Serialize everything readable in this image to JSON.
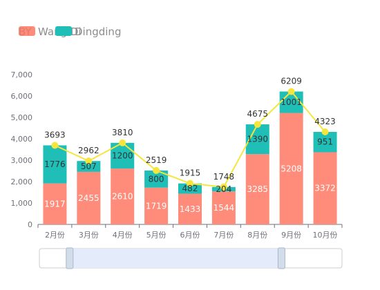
{
  "legend": {
    "series_a": "BY",
    "series_a_overlay": "Wang Di",
    "series_b": "Dingding"
  },
  "colors": {
    "series_a": "#ff8c7a",
    "series_b": "#1fbfb8",
    "line": "#f5e53c",
    "line_point": "#f5e53c",
    "grid": "#e6e6e6",
    "axis": "#6e7079",
    "zoom_fill": "#e4ecfb",
    "zoom_border": "#a7b7cc",
    "zoom_handle": "#d3dde9"
  },
  "chart_data": {
    "type": "bar",
    "stacked": true,
    "categories": [
      "2月份",
      "3月份",
      "4月份",
      "5月份",
      "6月份",
      "7月份",
      "8月份",
      "9月份",
      "10月份"
    ],
    "series": [
      {
        "name": "BY",
        "values": [
          1917,
          2455,
          2610,
          1719,
          1433,
          1544,
          3285,
          5208,
          3372
        ]
      },
      {
        "name": "Dingding",
        "values": [
          1776,
          507,
          1200,
          800,
          482,
          204,
          1390,
          1001,
          951
        ]
      }
    ],
    "line": {
      "values": [
        3693,
        2962,
        3810,
        2519,
        1915,
        1748,
        4675,
        6209,
        4323
      ]
    },
    "yticks": [
      "0",
      "1,000",
      "2,000",
      "3,000",
      "4,000",
      "5,000",
      "6,000",
      "7,000"
    ],
    "ylim": [
      0,
      7000
    ],
    "grid": false,
    "legend_position": "top-left"
  },
  "zoom": {
    "range_start": 0.1,
    "range_end": 0.8
  }
}
